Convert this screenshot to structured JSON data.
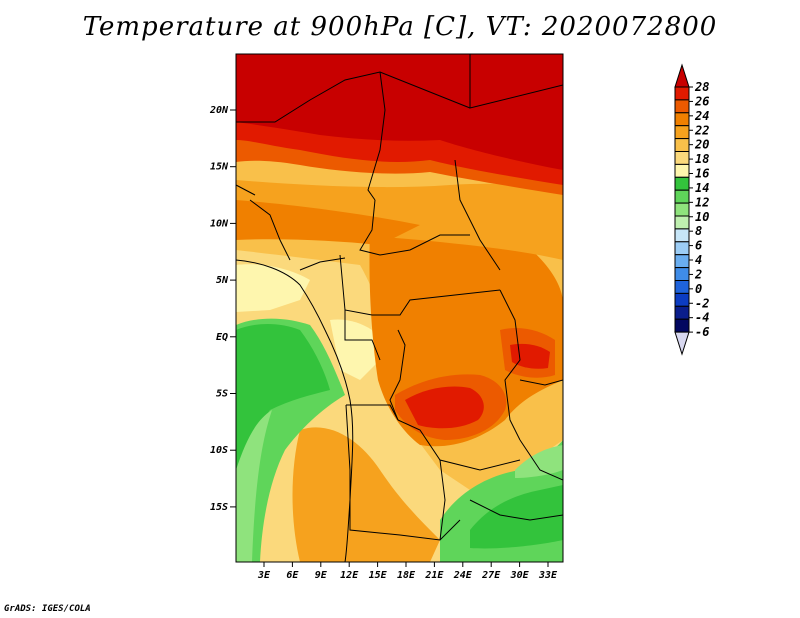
{
  "title": "Temperature at 900hPa [C], VT: 2020072800",
  "footer": "GrADS: IGES/COLA",
  "map": {
    "lat_labels": [
      "20N",
      "15N",
      "10N",
      "5N",
      "EQ",
      "5S",
      "10S",
      "15S"
    ],
    "lon_labels": [
      "3E",
      "6E",
      "9E",
      "12E",
      "15E",
      "18E",
      "21E",
      "24E",
      "27E",
      "30E",
      "33E"
    ]
  },
  "colorbar": {
    "labels": [
      "28",
      "26",
      "24",
      "22",
      "20",
      "18",
      "16",
      "14",
      "12",
      "10",
      "8",
      "6",
      "4",
      "2",
      "0",
      "-2",
      "-4",
      "-6"
    ],
    "colors": [
      "#c80000",
      "#e11a00",
      "#ec5a00",
      "#f08000",
      "#f6a21e",
      "#f9c04a",
      "#fbd97c",
      "#fef6ae",
      "#33c33c",
      "#5fd55a",
      "#8fe37d",
      "#bff0b0",
      "#c7e6f8",
      "#9ccdf5",
      "#6aaef0",
      "#3f8ce8",
      "#1f63db",
      "#0c3cc2",
      "#0a1e8c",
      "#020760",
      "#d8d8f0"
    ]
  }
}
